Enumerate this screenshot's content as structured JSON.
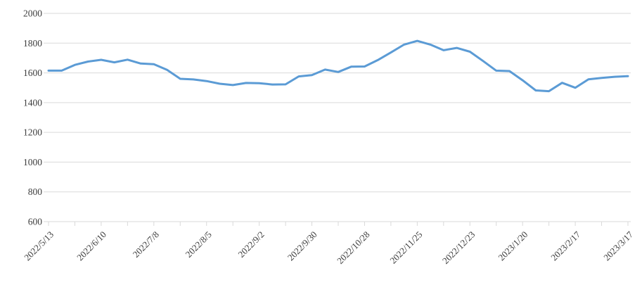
{
  "chart_data": {
    "type": "line",
    "title": "",
    "xlabel": "",
    "ylabel": "",
    "x": [
      "2022/5/13",
      "2022/5/20",
      "2022/5/27",
      "2022/6/3",
      "2022/6/10",
      "2022/6/17",
      "2022/6/24",
      "2022/7/1",
      "2022/7/8",
      "2022/7/15",
      "2022/7/22",
      "2022/7/29",
      "2022/8/5",
      "2022/8/12",
      "2022/8/19",
      "2022/8/26",
      "2022/9/2",
      "2022/9/9",
      "2022/9/16",
      "2022/9/23",
      "2022/9/30",
      "2022/10/7",
      "2022/10/14",
      "2022/10/21",
      "2022/10/28",
      "2022/11/4",
      "2022/11/11",
      "2022/11/18",
      "2022/11/25",
      "2022/12/2",
      "2022/12/9",
      "2022/12/16",
      "2022/12/23",
      "2022/12/30",
      "2023/1/6",
      "2023/1/13",
      "2023/1/20",
      "2023/1/27",
      "2023/2/3",
      "2023/2/10",
      "2023/2/17",
      "2023/2/24",
      "2023/3/3",
      "2023/3/10",
      "2023/3/17"
    ],
    "values": [
      1615,
      1615,
      1654,
      1676,
      1688,
      1671,
      1689,
      1663,
      1658,
      1620,
      1560,
      1556,
      1545,
      1527,
      1518,
      1532,
      1531,
      1522,
      1523,
      1576,
      1585,
      1622,
      1606,
      1642,
      1643,
      1686,
      1737,
      1790,
      1815,
      1790,
      1752,
      1768,
      1742,
      1680,
      1615,
      1612,
      1550,
      1482,
      1477,
      1533,
      1500,
      1557,
      1566,
      1574,
      1578
    ],
    "ylim": [
      600,
      2000
    ],
    "ytick_step": 200,
    "x_label_interval": 4,
    "x_tick_interval": 2,
    "legend": "none",
    "grid": "horizontal"
  },
  "y_axis_tick_labels": [
    "2000",
    "1800",
    "1600",
    "1400",
    "1200",
    "1000",
    "800",
    "600"
  ],
  "x_axis_shown_labels": [
    "2022/5/13",
    "2022/6/10",
    "2022/7/8",
    "2022/8/5",
    "2022/9/2",
    "2022/9/30",
    "2022/10/28",
    "2022/11/25",
    "2022/12/23",
    "2023/1/20",
    "2023/2/17",
    "2023/3/17"
  ],
  "style": {
    "line_color": "#5b9bd5",
    "grid_color": "#d9d9d9",
    "axis_line_color": "#d9d9d9",
    "tick_color": "#d9d9d9",
    "label_color": "#3d3d3d",
    "background_color": "#ffffff"
  }
}
